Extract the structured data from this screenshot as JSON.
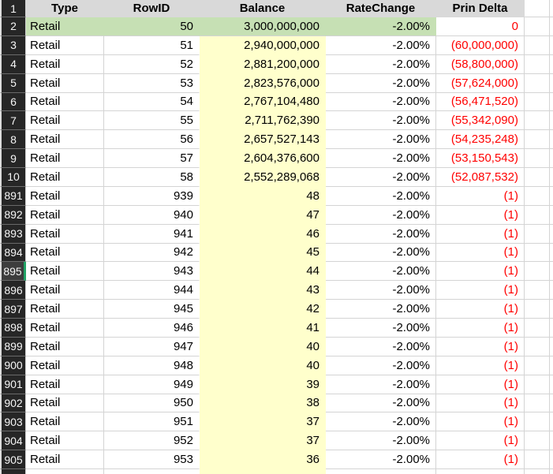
{
  "colors": {
    "header_fill": "#d9d9d9",
    "row_header_fill": "#262626",
    "highlight_green": "#c6e0b4",
    "balance_fill": "#ffffcc",
    "negative_text": "#ff0000",
    "selection_accent": "#21a366",
    "gridline": "#d4d4d4"
  },
  "header": {
    "row_num": "1",
    "cells": [
      "Type",
      "RowID",
      "Balance",
      "RateChange",
      "Prin Delta"
    ]
  },
  "rows": [
    {
      "num": "2",
      "type": "Retail",
      "row_id": "50",
      "balance": "3,000,000,000",
      "rate_change": "-2.00%",
      "prin_delta": "0",
      "highlight": "green",
      "selected": false
    },
    {
      "num": "3",
      "type": "Retail",
      "row_id": "51",
      "balance": "2,940,000,000",
      "rate_change": "-2.00%",
      "prin_delta": "(60,000,000)",
      "highlight": "",
      "selected": false
    },
    {
      "num": "4",
      "type": "Retail",
      "row_id": "52",
      "balance": "2,881,200,000",
      "rate_change": "-2.00%",
      "prin_delta": "(58,800,000)",
      "highlight": "",
      "selected": false
    },
    {
      "num": "5",
      "type": "Retail",
      "row_id": "53",
      "balance": "2,823,576,000",
      "rate_change": "-2.00%",
      "prin_delta": "(57,624,000)",
      "highlight": "",
      "selected": false
    },
    {
      "num": "6",
      "type": "Retail",
      "row_id": "54",
      "balance": "2,767,104,480",
      "rate_change": "-2.00%",
      "prin_delta": "(56,471,520)",
      "highlight": "",
      "selected": false
    },
    {
      "num": "7",
      "type": "Retail",
      "row_id": "55",
      "balance": "2,711,762,390",
      "rate_change": "-2.00%",
      "prin_delta": "(55,342,090)",
      "highlight": "",
      "selected": false
    },
    {
      "num": "8",
      "type": "Retail",
      "row_id": "56",
      "balance": "2,657,527,143",
      "rate_change": "-2.00%",
      "prin_delta": "(54,235,248)",
      "highlight": "",
      "selected": false
    },
    {
      "num": "9",
      "type": "Retail",
      "row_id": "57",
      "balance": "2,604,376,600",
      "rate_change": "-2.00%",
      "prin_delta": "(53,150,543)",
      "highlight": "",
      "selected": false
    },
    {
      "num": "10",
      "type": "Retail",
      "row_id": "58",
      "balance": "2,552,289,068",
      "rate_change": "-2.00%",
      "prin_delta": "(52,087,532)",
      "highlight": "",
      "selected": false
    },
    {
      "num": "891",
      "type": "Retail",
      "row_id": "939",
      "balance": "48",
      "rate_change": "-2.00%",
      "prin_delta": "(1)",
      "highlight": "",
      "selected": false
    },
    {
      "num": "892",
      "type": "Retail",
      "row_id": "940",
      "balance": "47",
      "rate_change": "-2.00%",
      "prin_delta": "(1)",
      "highlight": "",
      "selected": false
    },
    {
      "num": "893",
      "type": "Retail",
      "row_id": "941",
      "balance": "46",
      "rate_change": "-2.00%",
      "prin_delta": "(1)",
      "highlight": "",
      "selected": false
    },
    {
      "num": "894",
      "type": "Retail",
      "row_id": "942",
      "balance": "45",
      "rate_change": "-2.00%",
      "prin_delta": "(1)",
      "highlight": "",
      "selected": false
    },
    {
      "num": "895",
      "type": "Retail",
      "row_id": "943",
      "balance": "44",
      "rate_change": "-2.00%",
      "prin_delta": "(1)",
      "highlight": "",
      "selected": true
    },
    {
      "num": "896",
      "type": "Retail",
      "row_id": "944",
      "balance": "43",
      "rate_change": "-2.00%",
      "prin_delta": "(1)",
      "highlight": "",
      "selected": false
    },
    {
      "num": "897",
      "type": "Retail",
      "row_id": "945",
      "balance": "42",
      "rate_change": "-2.00%",
      "prin_delta": "(1)",
      "highlight": "",
      "selected": false
    },
    {
      "num": "898",
      "type": "Retail",
      "row_id": "946",
      "balance": "41",
      "rate_change": "-2.00%",
      "prin_delta": "(1)",
      "highlight": "",
      "selected": false
    },
    {
      "num": "899",
      "type": "Retail",
      "row_id": "947",
      "balance": "40",
      "rate_change": "-2.00%",
      "prin_delta": "(1)",
      "highlight": "",
      "selected": false
    },
    {
      "num": "900",
      "type": "Retail",
      "row_id": "948",
      "balance": "40",
      "rate_change": "-2.00%",
      "prin_delta": "(1)",
      "highlight": "",
      "selected": false
    },
    {
      "num": "901",
      "type": "Retail",
      "row_id": "949",
      "balance": "39",
      "rate_change": "-2.00%",
      "prin_delta": "(1)",
      "highlight": "",
      "selected": false
    },
    {
      "num": "902",
      "type": "Retail",
      "row_id": "950",
      "balance": "38",
      "rate_change": "-2.00%",
      "prin_delta": "(1)",
      "highlight": "",
      "selected": false
    },
    {
      "num": "903",
      "type": "Retail",
      "row_id": "951",
      "balance": "37",
      "rate_change": "-2.00%",
      "prin_delta": "(1)",
      "highlight": "",
      "selected": false
    },
    {
      "num": "904",
      "type": "Retail",
      "row_id": "952",
      "balance": "37",
      "rate_change": "-2.00%",
      "prin_delta": "(1)",
      "highlight": "",
      "selected": false
    },
    {
      "num": "905",
      "type": "Retail",
      "row_id": "953",
      "balance": "36",
      "rate_change": "-2.00%",
      "prin_delta": "(1)",
      "highlight": "",
      "selected": false
    }
  ]
}
